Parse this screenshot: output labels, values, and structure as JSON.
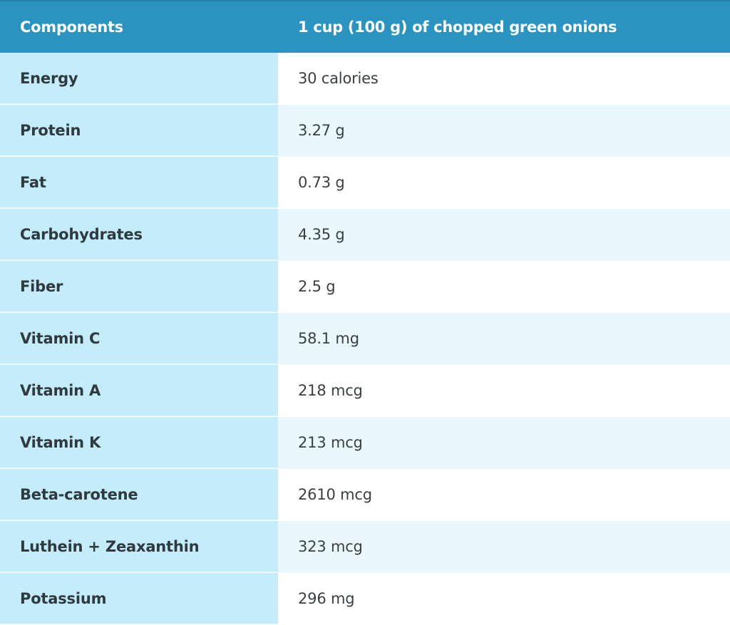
{
  "header": {
    "col1": "Components",
    "col2": "1 cup (100 g) of chopped green onions"
  },
  "rows": [
    {
      "component": "Energy",
      "value": "30 calories"
    },
    {
      "component": "Protein",
      "value": "3.27 g"
    },
    {
      "component": "Fat",
      "value": "0.73 g"
    },
    {
      "component": "Carbohydrates",
      "value": "4.35 g"
    },
    {
      "component": "Fiber",
      "value": "2.5 g"
    },
    {
      "component": "Vitamin C",
      "value": "58.1 mg"
    },
    {
      "component": "Vitamin A",
      "value": "218 mcg"
    },
    {
      "component": "Vitamin K",
      "value": "213 mcg"
    },
    {
      "component": "Beta-carotene",
      "value": "2610 mcg"
    },
    {
      "component": "Luthein + Zeaxanthin",
      "value": "323 mcg"
    },
    {
      "component": "Potassium",
      "value": "296 mg"
    }
  ],
  "colors": {
    "header_bg": "#2b93bf",
    "label_bg": "#c5ecfa",
    "stripe_bg": "#eaf8fd"
  }
}
